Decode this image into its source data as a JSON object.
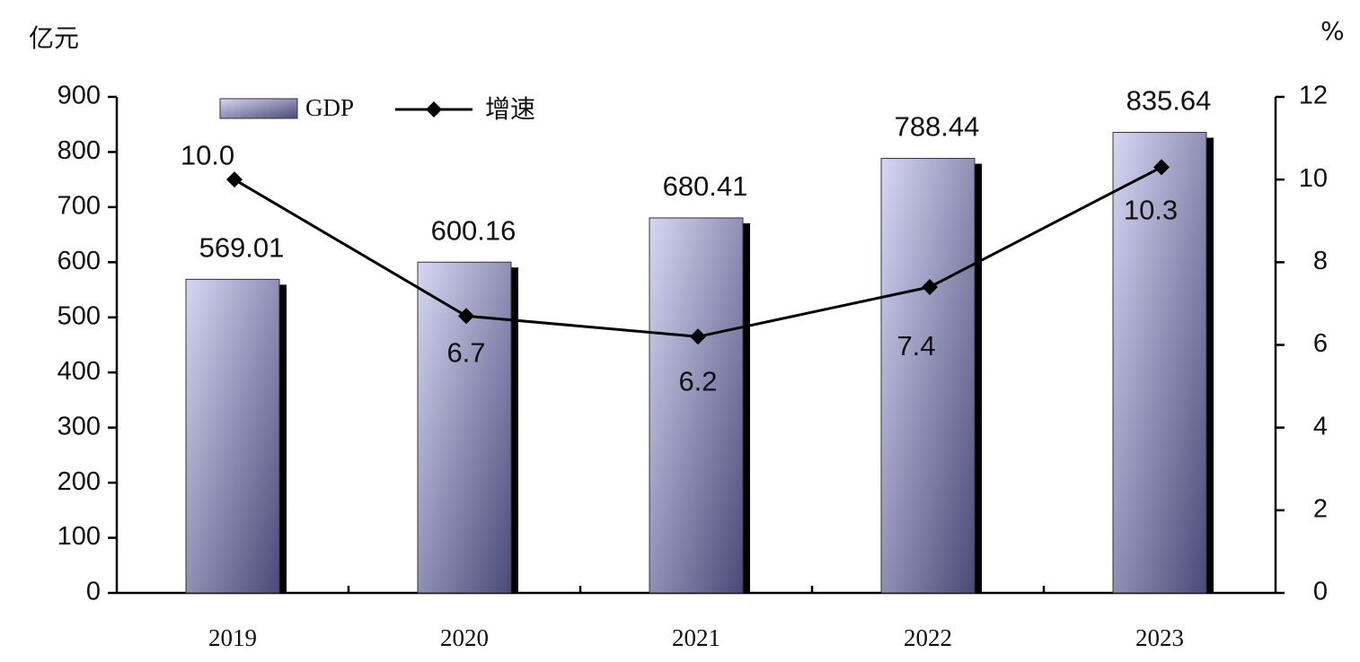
{
  "chart_data": {
    "type": "bar-line",
    "y_label": "亿元",
    "y2_label": "%",
    "categories": [
      "2019",
      "2020",
      "2021",
      "2022",
      "2023"
    ],
    "series": [
      {
        "name": "GDP",
        "type": "bar",
        "color": "#4a4a78",
        "values": [
          569.01,
          600.16,
          680.41,
          788.44,
          835.64
        ]
      },
      {
        "name": "增速",
        "type": "line",
        "axis": "y2",
        "color": "#000000",
        "values": [
          10.0,
          6.7,
          6.2,
          7.4,
          10.3
        ],
        "value_labels": [
          "10.0",
          "6.7",
          "6.2",
          "7.4",
          "10.3"
        ]
      }
    ],
    "ylim": [
      0,
      900
    ],
    "yticks": [
      0,
      100,
      200,
      300,
      400,
      500,
      600,
      700,
      800,
      900
    ],
    "y2lim": [
      0,
      12
    ],
    "y2ticks": [
      0,
      2,
      4,
      6,
      8,
      10,
      12
    ],
    "legend": "top"
  }
}
